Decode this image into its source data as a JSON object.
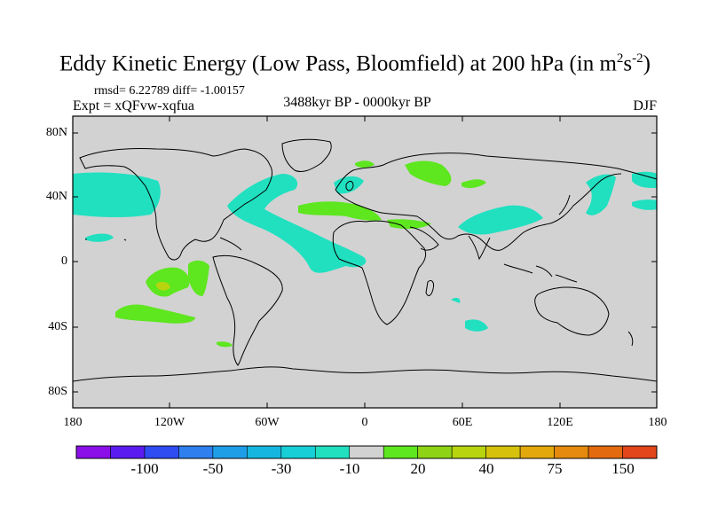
{
  "title": "Eddy Kinetic Energy (Low Pass, Bloomfield) at 200 hPa (in m²s⁻²)",
  "stats": "rmsd= 6.22789  diff= -1.00157",
  "experiment": "Expt = xQFvw-xqfua",
  "period": "3488kyr BP - 0000kyr BP",
  "season": "DJF",
  "y_axis": {
    "ticks": [
      "80N",
      "40N",
      "0",
      "40S",
      "80S"
    ]
  },
  "x_axis": {
    "ticks": [
      "180",
      "120W",
      "60W",
      "0",
      "60E",
      "120E",
      "180"
    ]
  },
  "colorbar": {
    "colors": [
      "#8a0fe8",
      "#5a1bf0",
      "#2f4bf2",
      "#2f7fef",
      "#1f9ee8",
      "#15b7e0",
      "#17cfd6",
      "#20e0c0",
      "#d2d2d2",
      "#5ee61f",
      "#8ed414",
      "#b8d40f",
      "#d6c20c",
      "#e2a80c",
      "#e58a0e",
      "#e46a10",
      "#e2461a"
    ],
    "labels": [
      "-100",
      "-50",
      "-30",
      "-10",
      "20",
      "40",
      "75",
      "150"
    ]
  },
  "colors": {
    "ocean_land": "#d2d2d2",
    "negative_fill": "#20e0c0",
    "positive_fill": "#5ee61f",
    "positive_high": "#b8d40f"
  }
}
